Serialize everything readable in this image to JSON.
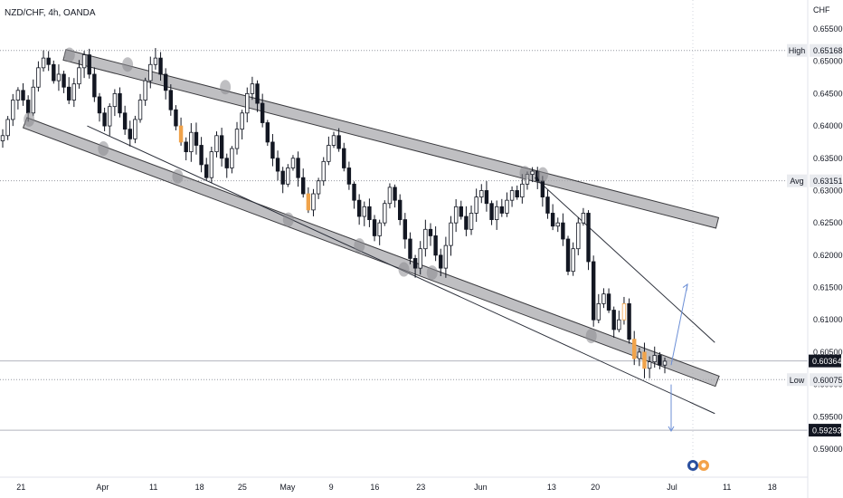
{
  "symbol_title": "NZD/CHF, 4h, OANDA",
  "currency_label": "CHF",
  "colors": {
    "background": "#ffffff",
    "candle": "#131722",
    "highlight_candle": "#f0a34a",
    "channel_fill": "#a9a9ad",
    "channel_stroke": "#3b3b3f",
    "arrow": "#6c8fd6",
    "price_tag_bg": "#131722",
    "price_tag_text": "#ffffff",
    "label_bg": "#e9ebef",
    "dotted_line": "#9598a1",
    "axis_line": "#e0e3eb"
  },
  "chart_data": {
    "type": "candlestick",
    "y_axis": {
      "min": 0.585,
      "max": 0.6565,
      "ticks": [
        "0.65500",
        "0.65000",
        "0.64500",
        "0.64000",
        "0.63500",
        "0.63000",
        "0.62500",
        "0.62000",
        "0.61500",
        "0.61000",
        "0.60500",
        "0.60000",
        "0.59500",
        "0.59000"
      ],
      "tick_values": [
        0.655,
        0.65,
        0.645,
        0.64,
        0.635,
        0.63,
        0.625,
        0.62,
        0.615,
        0.61,
        0.605,
        0.6,
        0.595,
        0.59
      ]
    },
    "x_axis": {
      "ticks": [
        {
          "label": "21",
          "pos": 0.026
        },
        {
          "label": "Apr",
          "pos": 0.127
        },
        {
          "label": "11",
          "pos": 0.19
        },
        {
          "label": "18",
          "pos": 0.247
        },
        {
          "label": "25",
          "pos": 0.3
        },
        {
          "label": "May",
          "pos": 0.356
        },
        {
          "label": "9",
          "pos": 0.41
        },
        {
          "label": "16",
          "pos": 0.464
        },
        {
          "label": "23",
          "pos": 0.521
        },
        {
          "label": "Jun",
          "pos": 0.595
        },
        {
          "label": "13",
          "pos": 0.683
        },
        {
          "label": "20",
          "pos": 0.737
        },
        {
          "label": "Jul",
          "pos": 0.832
        },
        {
          "label": "11",
          "pos": 0.9
        },
        {
          "label": "18",
          "pos": 0.956
        }
      ]
    },
    "price_labels": [
      {
        "name": "High",
        "value": 0.65168,
        "text": "0.65168"
      },
      {
        "name": "Avg",
        "value": 0.63151,
        "text": "0.63151"
      },
      {
        "name": "",
        "value": 0.60364,
        "text": "0.60364",
        "style": "current"
      },
      {
        "name": "Low",
        "value": 0.60075,
        "text": "0.60075"
      },
      {
        "name": "",
        "value": 0.59293,
        "text": "0.59293",
        "style": "current"
      }
    ],
    "closes": [
      0.6385,
      0.641,
      0.644,
      0.6455,
      0.644,
      0.642,
      0.646,
      0.649,
      0.6505,
      0.6495,
      0.647,
      0.648,
      0.646,
      0.644,
      0.6465,
      0.649,
      0.651,
      0.648,
      0.6445,
      0.642,
      0.64,
      0.643,
      0.645,
      0.642,
      0.6395,
      0.638,
      0.641,
      0.644,
      0.647,
      0.6495,
      0.6505,
      0.648,
      0.6455,
      0.6425,
      0.64,
      0.6375,
      0.636,
      0.639,
      0.637,
      0.634,
      0.632,
      0.636,
      0.6385,
      0.635,
      0.6335,
      0.6365,
      0.6395,
      0.642,
      0.645,
      0.6465,
      0.6435,
      0.6405,
      0.6375,
      0.635,
      0.633,
      0.631,
      0.6335,
      0.635,
      0.632,
      0.6295,
      0.627,
      0.6295,
      0.6315,
      0.6345,
      0.637,
      0.6385,
      0.6365,
      0.6335,
      0.631,
      0.6285,
      0.626,
      0.6275,
      0.6255,
      0.623,
      0.625,
      0.628,
      0.6305,
      0.6285,
      0.6255,
      0.6225,
      0.6195,
      0.618,
      0.621,
      0.624,
      0.623,
      0.62,
      0.618,
      0.6215,
      0.625,
      0.6275,
      0.626,
      0.624,
      0.6265,
      0.629,
      0.63,
      0.628,
      0.6255,
      0.6275,
      0.6265,
      0.6285,
      0.63,
      0.629,
      0.631,
      0.6325,
      0.633,
      0.6315,
      0.629,
      0.6265,
      0.6245,
      0.625,
      0.6225,
      0.6175,
      0.621,
      0.625,
      0.6265,
      0.619,
      0.61,
      0.6125,
      0.614,
      0.6115,
      0.6085,
      0.61,
      0.6125,
      0.607,
      0.604,
      0.605,
      0.6025,
      0.6035,
      0.6045,
      0.603,
      0.6036
    ],
    "drawn_lines": [
      {
        "name": "upper-channel-band",
        "kind": "band",
        "from": [
          0.08,
          0.651
        ],
        "to": [
          0.888,
          0.625
        ]
      },
      {
        "name": "lower-channel-band",
        "kind": "band",
        "from": [
          0.031,
          0.6405
        ],
        "to": [
          0.888,
          0.6005
        ]
      },
      {
        "name": "support-trendline",
        "kind": "line",
        "from": [
          0.108,
          0.64
        ],
        "to": [
          0.885,
          0.5955
        ]
      },
      {
        "name": "descending-trendline",
        "kind": "line",
        "from": [
          0.662,
          0.632
        ],
        "to": [
          0.885,
          0.6065
        ]
      }
    ]
  }
}
